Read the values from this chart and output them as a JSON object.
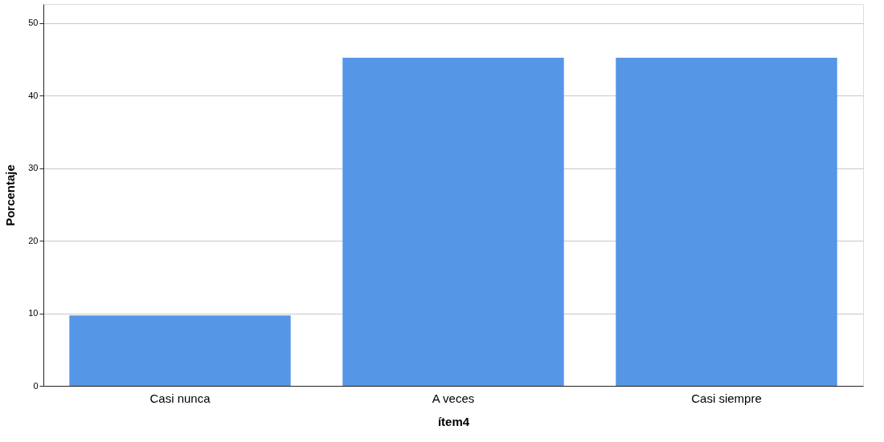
{
  "chart_data": {
    "type": "bar",
    "xlabel": "ítem4",
    "ylabel": "Porcentaje",
    "categories": [
      "Casi nunca",
      "A veces",
      "Casi siempre"
    ],
    "values": [
      9.7,
      45.2,
      45.2
    ],
    "color": "#5596e6",
    "ylim": [
      0,
      52.6
    ],
    "yticks": [
      0,
      10,
      20,
      30,
      40,
      50
    ],
    "grid": "y"
  }
}
